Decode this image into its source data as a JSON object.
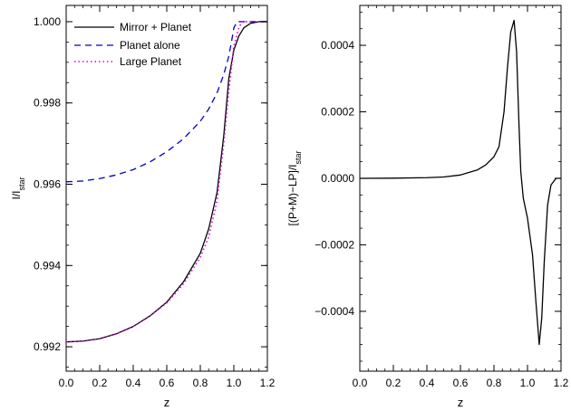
{
  "chart_data": [
    {
      "type": "line",
      "xlabel": "z",
      "ylabel": "I/I",
      "ylabel_sub": "star",
      "xlim": [
        0.0,
        1.2
      ],
      "ylim": [
        0.9914,
        1.0004
      ],
      "x_ticks": [
        {
          "value": 0.0,
          "label": "0.0"
        },
        {
          "value": 0.2,
          "label": "0.2"
        },
        {
          "value": 0.4,
          "label": "0.4"
        },
        {
          "value": 0.6,
          "label": "0.6"
        },
        {
          "value": 0.8,
          "label": "0.8"
        },
        {
          "value": 1.0,
          "label": "1.0"
        },
        {
          "value": 1.2,
          "label": "1.2"
        }
      ],
      "y_ticks": [
        {
          "value": 0.992,
          "label": "0.992"
        },
        {
          "value": 0.994,
          "label": "0.994"
        },
        {
          "value": 0.996,
          "label": "0.996"
        },
        {
          "value": 0.998,
          "label": "0.998"
        },
        {
          "value": 1.0,
          "label": "1.000"
        }
      ],
      "legend_position": "top-left",
      "series": [
        {
          "name": "Mirror + Planet",
          "color": "#000000",
          "dash": "solid",
          "points": [
            [
              0.0,
              0.99212
            ],
            [
              0.1,
              0.99214
            ],
            [
              0.2,
              0.9922
            ],
            [
              0.3,
              0.99232
            ],
            [
              0.4,
              0.9925
            ],
            [
              0.5,
              0.99276
            ],
            [
              0.6,
              0.9931
            ],
            [
              0.7,
              0.9936
            ],
            [
              0.8,
              0.9943
            ],
            [
              0.85,
              0.9949
            ],
            [
              0.9,
              0.9958
            ],
            [
              0.94,
              0.9972
            ],
            [
              0.97,
              0.9986
            ],
            [
              1.0,
              0.9993
            ],
            [
              1.03,
              0.99965
            ],
            [
              1.06,
              0.99985
            ],
            [
              1.1,
              0.99996
            ],
            [
              1.15,
              1.0
            ],
            [
              1.2,
              1.0
            ]
          ]
        },
        {
          "name": "Planet alone",
          "color": "#0000cc",
          "dash": "dashed",
          "points": [
            [
              0.0,
              0.99606
            ],
            [
              0.1,
              0.99608
            ],
            [
              0.2,
              0.99614
            ],
            [
              0.3,
              0.99623
            ],
            [
              0.4,
              0.99636
            ],
            [
              0.5,
              0.99655
            ],
            [
              0.6,
              0.9968
            ],
            [
              0.7,
              0.99712
            ],
            [
              0.8,
              0.99755
            ],
            [
              0.85,
              0.99785
            ],
            [
              0.9,
              0.99825
            ],
            [
              0.94,
              0.9987
            ],
            [
              0.97,
              0.99915
            ],
            [
              0.99,
              0.9996
            ],
            [
              1.0,
              0.99985
            ],
            [
              1.02,
              1.0
            ],
            [
              1.2,
              1.0
            ]
          ]
        },
        {
          "name": "Large Planet",
          "color": "#dd00dd",
          "dash": "dotted",
          "points": [
            [
              0.0,
              0.99212
            ],
            [
              0.1,
              0.99214
            ],
            [
              0.2,
              0.9922
            ],
            [
              0.3,
              0.99232
            ],
            [
              0.4,
              0.9925
            ],
            [
              0.5,
              0.99276
            ],
            [
              0.6,
              0.99308
            ],
            [
              0.7,
              0.99355
            ],
            [
              0.8,
              0.9942
            ],
            [
              0.85,
              0.9947
            ],
            [
              0.9,
              0.9956
            ],
            [
              0.94,
              0.997
            ],
            [
              0.97,
              0.9983
            ],
            [
              1.0,
              0.9994
            ],
            [
              1.03,
              0.99985
            ],
            [
              1.05,
              1.0
            ],
            [
              1.2,
              1.0
            ]
          ]
        }
      ]
    },
    {
      "type": "line",
      "xlabel": "z",
      "ylabel": "[(P+M)−LP]/I",
      "ylabel_sub": "star",
      "xlim": [
        0.0,
        1.2
      ],
      "ylim": [
        -0.00058,
        0.00052
      ],
      "x_ticks": [
        {
          "value": 0.0,
          "label": "0.0"
        },
        {
          "value": 0.2,
          "label": "0.2"
        },
        {
          "value": 0.4,
          "label": "0.4"
        },
        {
          "value": 0.6,
          "label": "0.6"
        },
        {
          "value": 0.8,
          "label": "0.8"
        },
        {
          "value": 1.0,
          "label": "1.0"
        },
        {
          "value": 1.2,
          "label": "1.2"
        }
      ],
      "y_ticks": [
        {
          "value": 0.0004,
          "label": "0.0004"
        },
        {
          "value": 0.0002,
          "label": "0.0002"
        },
        {
          "value": 0.0,
          "label": "0.0000"
        },
        {
          "value": -0.0002,
          "label": "−0.0002"
        },
        {
          "value": -0.0004,
          "label": "−0.0004"
        }
      ],
      "series": [
        {
          "color": "#000000",
          "dash": "solid",
          "points": [
            [
              0.0,
              0.0
            ],
            [
              0.2,
              5e-07
            ],
            [
              0.4,
              2e-06
            ],
            [
              0.5,
              4e-06
            ],
            [
              0.6,
              1e-05
            ],
            [
              0.7,
              2.5e-05
            ],
            [
              0.75,
              4e-05
            ],
            [
              0.8,
              6.5e-05
            ],
            [
              0.83,
              9.5e-05
            ],
            [
              0.86,
              0.0002
            ],
            [
              0.88,
              0.00033
            ],
            [
              0.9,
              0.00044
            ],
            [
              0.92,
              0.000475
            ],
            [
              0.935,
              0.00038
            ],
            [
              0.95,
              0.00015
            ],
            [
              0.96,
              2e-05
            ],
            [
              0.975,
              -6e-05
            ],
            [
              1.0,
              -0.00012
            ],
            [
              1.03,
              -0.00023
            ],
            [
              1.05,
              -0.00037
            ],
            [
              1.07,
              -0.0005
            ],
            [
              1.085,
              -0.00042
            ],
            [
              1.1,
              -0.00025
            ],
            [
              1.12,
              -8e-05
            ],
            [
              1.14,
              -2e-05
            ],
            [
              1.17,
              0.0
            ],
            [
              1.2,
              0.0
            ]
          ]
        }
      ]
    }
  ]
}
